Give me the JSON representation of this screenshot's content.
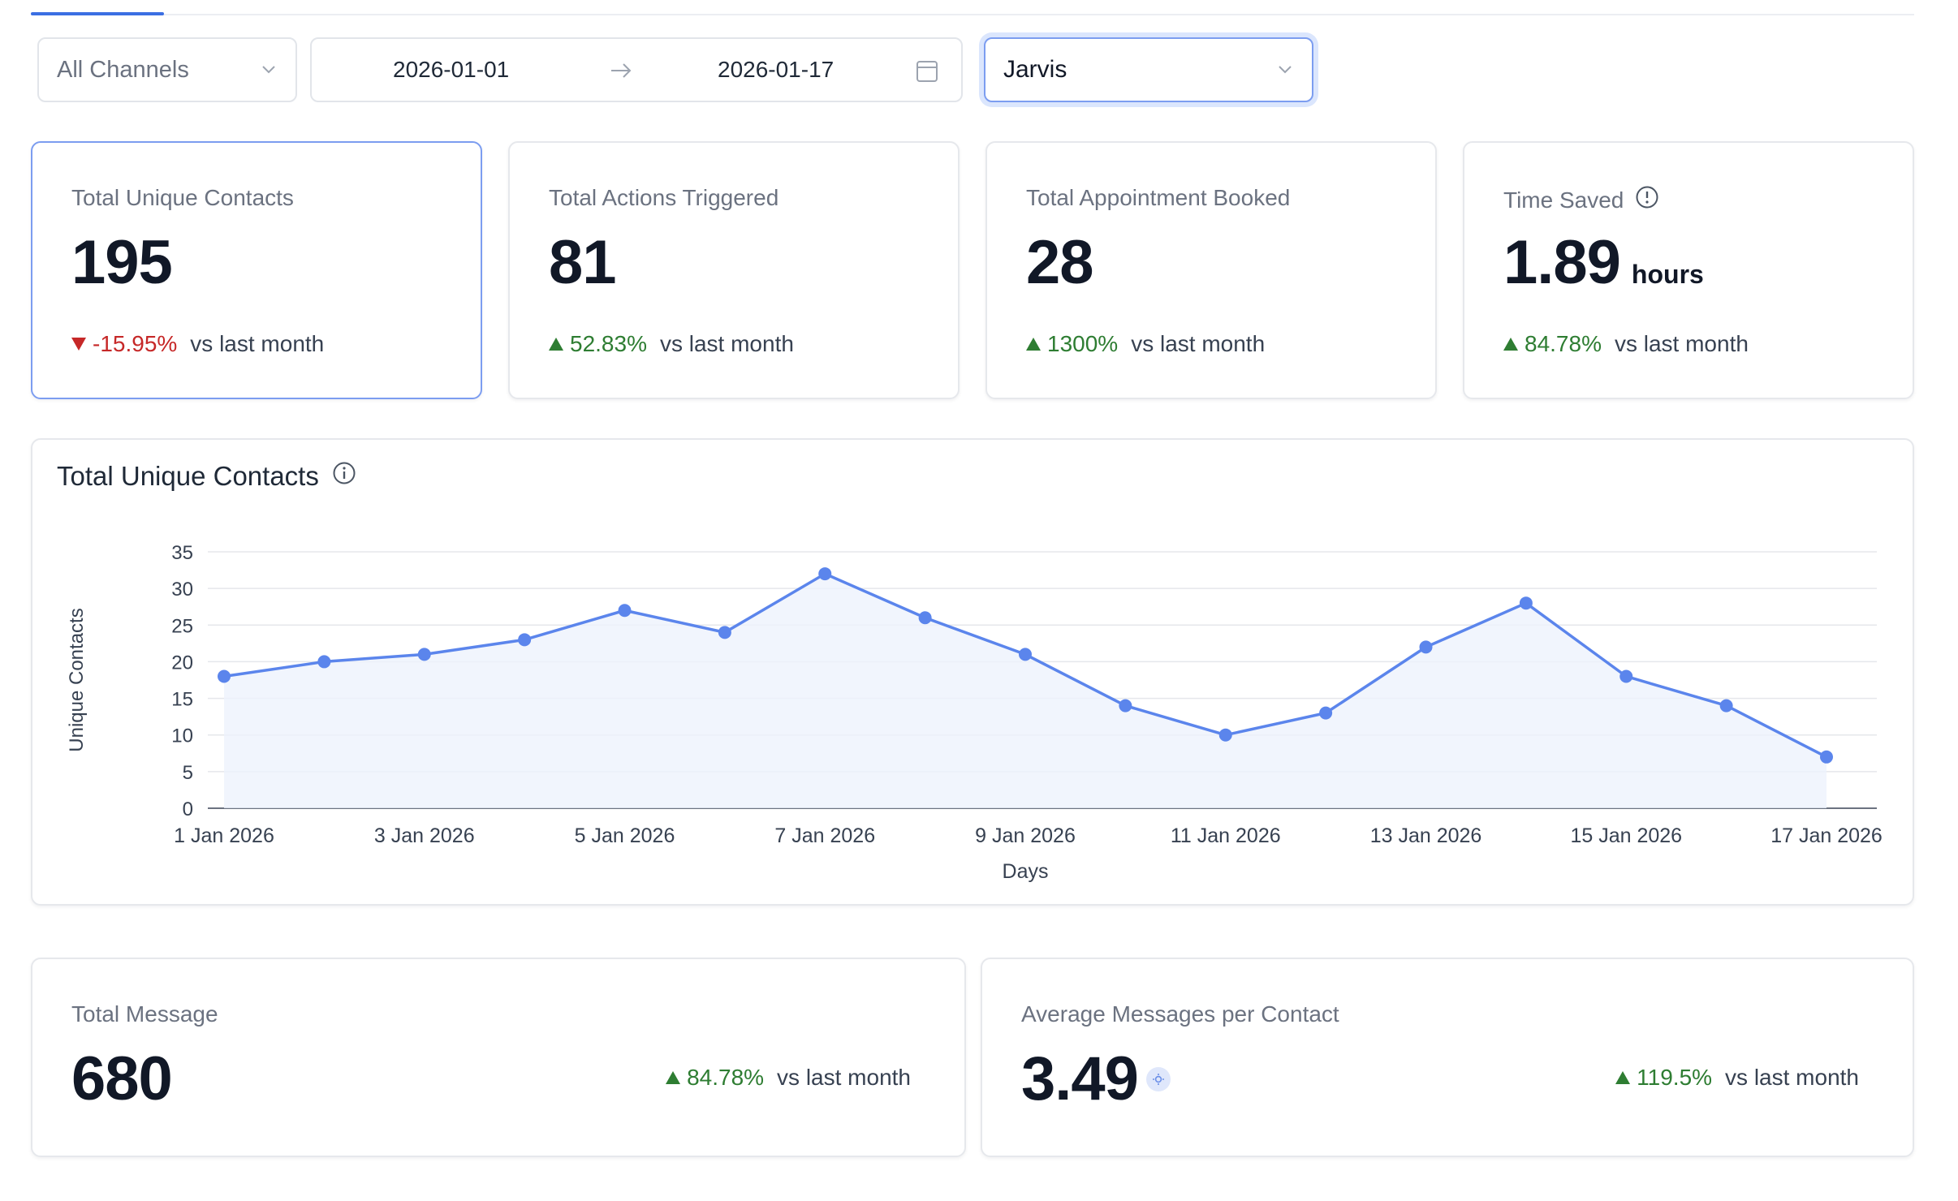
{
  "filters": {
    "channel": "All Channels",
    "date_start": "2026-01-01",
    "date_end": "2026-01-17",
    "agent": "Jarvis"
  },
  "kpis": [
    {
      "label": "Total Unique Contacts",
      "value": "195",
      "unit": "",
      "trend": "down",
      "change": "-15.95%",
      "comparison": "vs last month"
    },
    {
      "label": "Total Actions Triggered",
      "value": "81",
      "unit": "",
      "trend": "up",
      "change": "52.83%",
      "comparison": "vs last month"
    },
    {
      "label": "Total Appointment Booked",
      "value": "28",
      "unit": "",
      "trend": "up",
      "change": "1300%",
      "comparison": "vs last month"
    },
    {
      "label": "Time Saved",
      "value": "1.89",
      "unit": "hours",
      "trend": "up",
      "change": "84.78%",
      "comparison": "vs last month"
    }
  ],
  "chart": {
    "title": "Total Unique Contacts"
  },
  "chart_data": {
    "type": "area",
    "title": "Total Unique Contacts",
    "xlabel": "Days",
    "ylabel": "Unique Contacts",
    "x": [
      "1 Jan 2026",
      "2 Jan 2026",
      "3 Jan 2026",
      "4 Jan 2026",
      "5 Jan 2026",
      "6 Jan 2026",
      "7 Jan 2026",
      "8 Jan 2026",
      "9 Jan 2026",
      "10 Jan 2026",
      "11 Jan 2026",
      "12 Jan 2026",
      "13 Jan 2026",
      "14 Jan 2026",
      "15 Jan 2026",
      "16 Jan 2026",
      "17 Jan 2026"
    ],
    "x_tick_labels": [
      "1 Jan 2026",
      "3 Jan 2026",
      "5 Jan 2026",
      "7 Jan 2026",
      "9 Jan 2026",
      "11 Jan 2026",
      "13 Jan 2026",
      "15 Jan 2026",
      "17 Jan 2026"
    ],
    "values": [
      18,
      20,
      21,
      23,
      27,
      24,
      32,
      26,
      21,
      14,
      10,
      13,
      22,
      28,
      18,
      14,
      7
    ],
    "y_ticks": [
      0,
      5,
      10,
      15,
      20,
      25,
      30,
      35
    ],
    "ylim": [
      0,
      35
    ],
    "grid": true,
    "line_color": "#5b85ec",
    "fill_color": "#eef2fd"
  },
  "bottom": [
    {
      "label": "Total Message",
      "value": "680",
      "trend": "up",
      "change": "84.78%",
      "comparison": "vs last month"
    },
    {
      "label": "Average Messages per Contact",
      "value": "3.49",
      "trend": "up",
      "change": "119.5%",
      "comparison": "vs last month"
    }
  ]
}
